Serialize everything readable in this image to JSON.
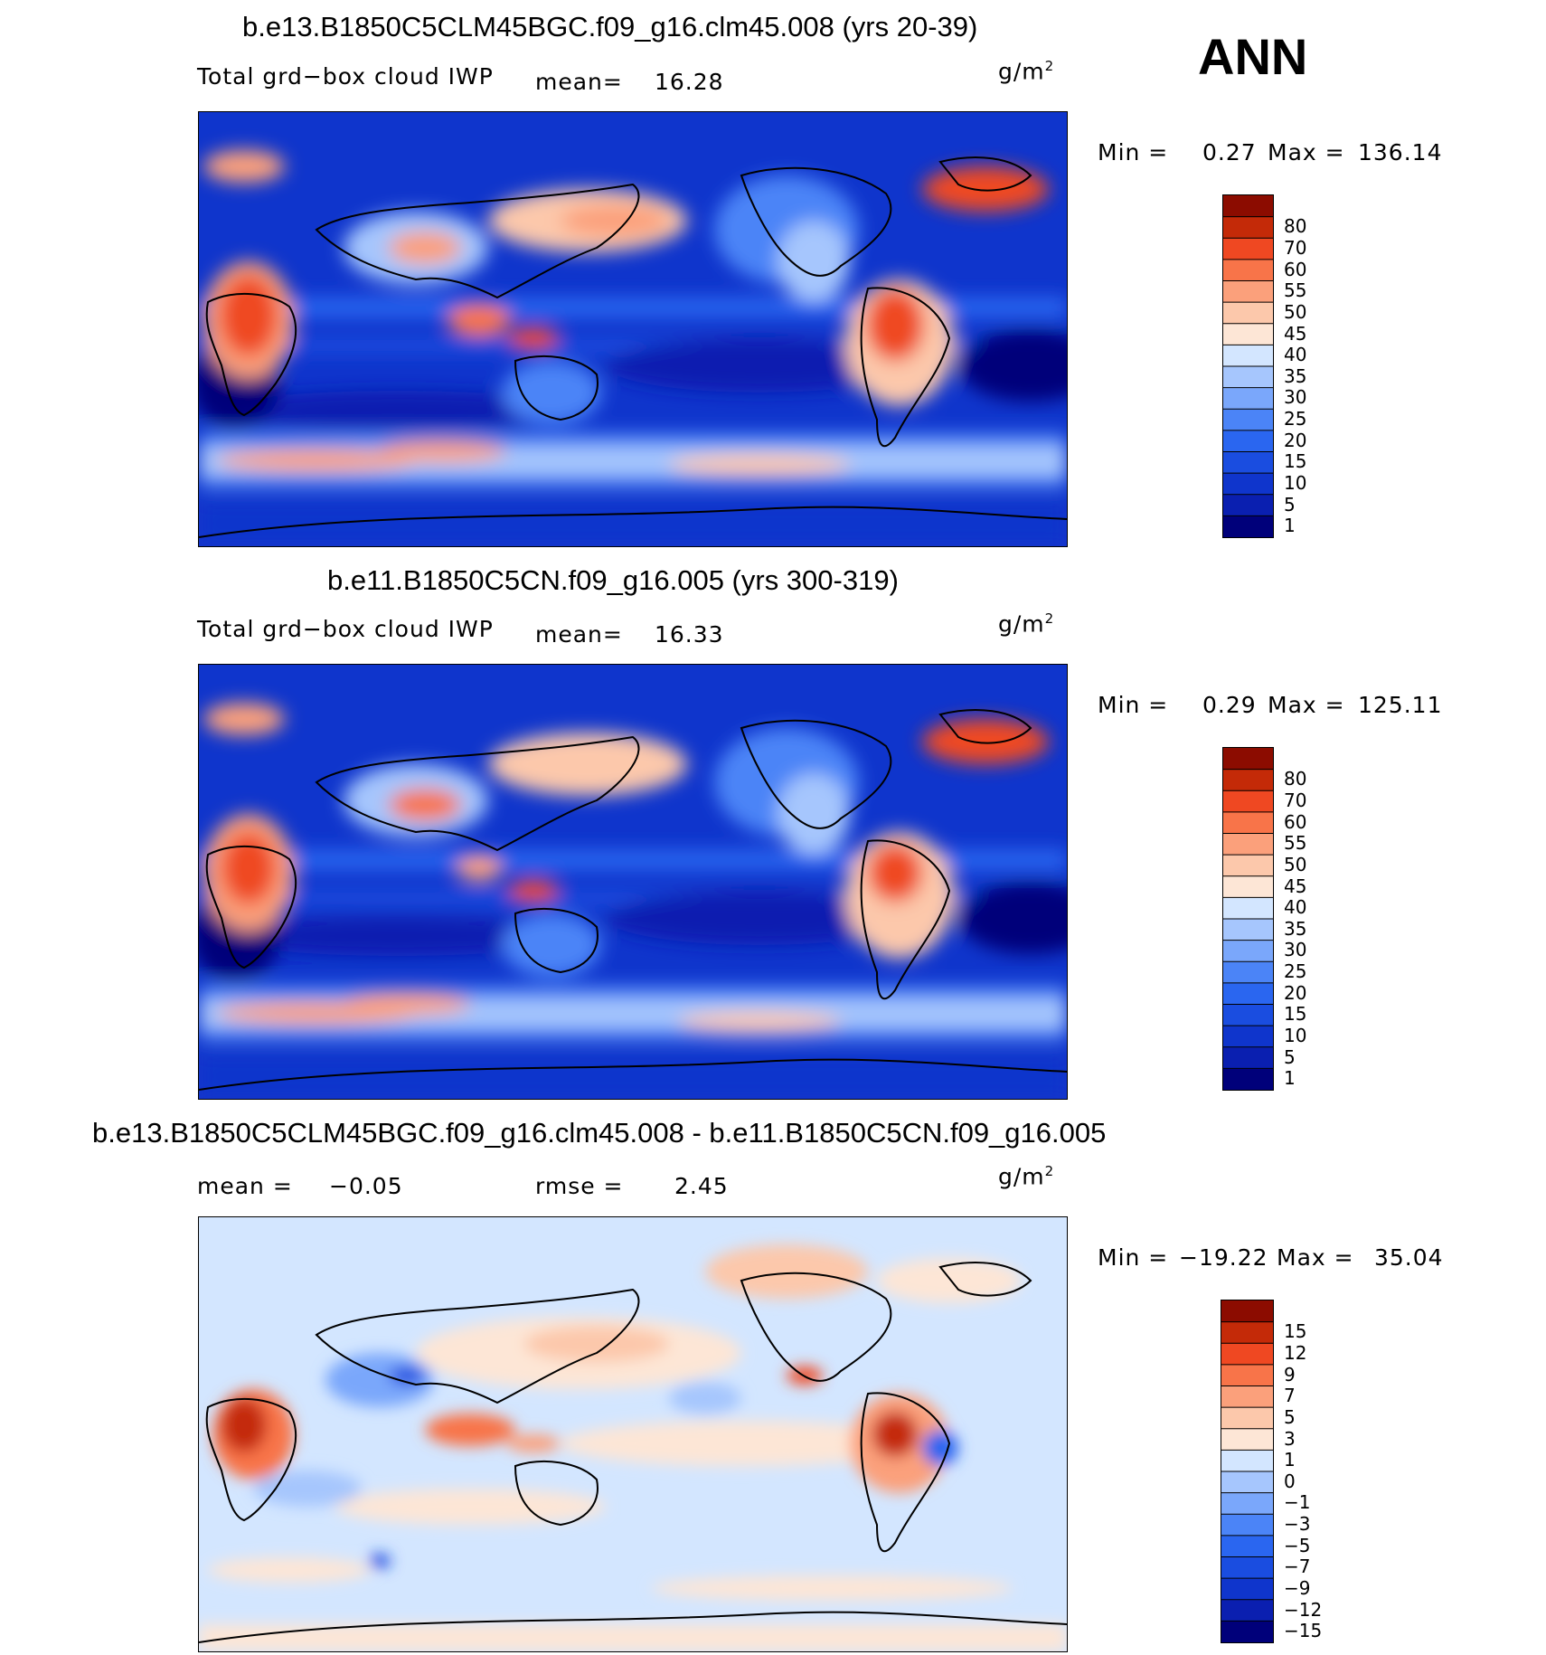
{
  "season": "ANN",
  "panels": [
    {
      "title": "b.e13.B1850C5CLM45BGC.f09_g16.clm45.008 (yrs 20-39)",
      "left_label": "Total grd−box cloud IWP",
      "mean_label": "mean=",
      "mean_value": "16.28",
      "units": "g/m",
      "units_exp": "2",
      "min_label": "Min =",
      "min_value": "0.27",
      "max_label": "Max =",
      "max_value": "136.14"
    },
    {
      "title": "b.e11.B1850C5CN.f09_g16.005 (yrs 300-319)",
      "left_label": "Total grd−box cloud IWP",
      "mean_label": "mean=",
      "mean_value": "16.33",
      "units": "g/m",
      "units_exp": "2",
      "min_label": "Min =",
      "min_value": "0.29",
      "max_label": "Max =",
      "max_value": "125.11"
    },
    {
      "title": "b.e13.B1850C5CLM45BGC.f09_g16.clm45.008 - b.e11.B1850C5CN.f09_g16.005",
      "left_label": "mean =",
      "mean_value": "−0.05",
      "rmse_label": "rmse =",
      "rmse_value": "2.45",
      "units": "g/m",
      "units_exp": "2",
      "min_label": "Min =",
      "min_value": "−19.22",
      "max_label": "Max =",
      "max_value": "35.04"
    }
  ],
  "chart_data": [
    {
      "type": "heatmap",
      "title": "b.e13.B1850C5CLM45BGC.f09_g16.clm45.008 (yrs 20-39)",
      "variable": "Total grd−box cloud IWP",
      "units": "g/m2",
      "mean": 16.28,
      "min": 0.27,
      "max": 136.14,
      "contour_levels": [
        1,
        5,
        10,
        15,
        20,
        25,
        30,
        35,
        40,
        45,
        50,
        55,
        60,
        70,
        80
      ],
      "colors": [
        "#00007a",
        "#0a1fb0",
        "#0f35cc",
        "#1a4de0",
        "#2a66f0",
        "#4b84f7",
        "#7aa7fb",
        "#a6c6fd",
        "#d3e6ff",
        "#fde6d6",
        "#fcc8ab",
        "#fba07b",
        "#f87449",
        "#ef4822",
        "#c42a08",
        "#8c0c00"
      ]
    },
    {
      "type": "heatmap",
      "title": "b.e11.B1850C5CN.f09_g16.005 (yrs 300-319)",
      "variable": "Total grd−box cloud IWP",
      "units": "g/m2",
      "mean": 16.33,
      "min": 0.29,
      "max": 125.11,
      "contour_levels": [
        1,
        5,
        10,
        15,
        20,
        25,
        30,
        35,
        40,
        45,
        50,
        55,
        60,
        70,
        80
      ],
      "colors": [
        "#00007a",
        "#0a1fb0",
        "#0f35cc",
        "#1a4de0",
        "#2a66f0",
        "#4b84f7",
        "#7aa7fb",
        "#a6c6fd",
        "#d3e6ff",
        "#fde6d6",
        "#fcc8ab",
        "#fba07b",
        "#f87449",
        "#ef4822",
        "#c42a08",
        "#8c0c00"
      ]
    },
    {
      "type": "heatmap",
      "title": "b.e13.B1850C5CLM45BGC.f09_g16.clm45.008 - b.e11.B1850C5CN.f09_g16.005",
      "units": "g/m2",
      "mean": -0.05,
      "rmse": 2.45,
      "min": -19.22,
      "max": 35.04,
      "contour_levels": [
        -15,
        -12,
        -9,
        -7,
        -5,
        -3,
        -1,
        0,
        1,
        3,
        5,
        7,
        9,
        12,
        15
      ],
      "colors": [
        "#00007a",
        "#0a1fb0",
        "#0f35cc",
        "#1a4de0",
        "#2a66f0",
        "#4b84f7",
        "#7aa7fb",
        "#a6c6fd",
        "#d3e6ff",
        "#fde6d6",
        "#fcc8ab",
        "#fba07b",
        "#f87449",
        "#ef4822",
        "#c42a08",
        "#8c0c00"
      ]
    }
  ]
}
